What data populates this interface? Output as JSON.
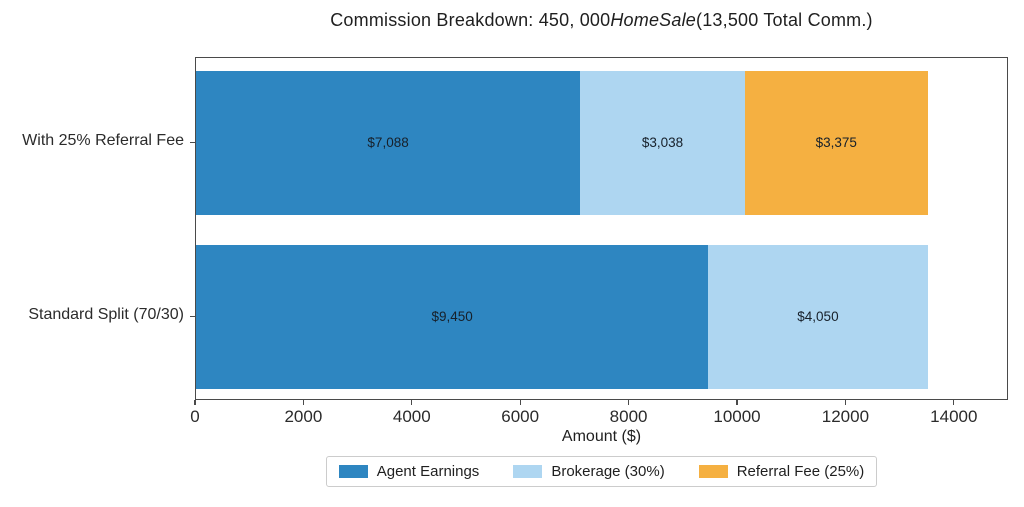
{
  "chart_data": {
    "type": "bar",
    "orientation": "horizontal",
    "stacked": true,
    "title_display": "Commission Breakdown: 450, 000HomeSale(13,500 Total Comm.)",
    "title_parts": {
      "prefix": "Commission Breakdown: 450, 000",
      "math_italic": "HomeSale",
      "suffix": "(13,500 Total Comm.)"
    },
    "categories": [
      "With 25% Referral Fee",
      "Standard Split (70/30)"
    ],
    "series": [
      {
        "name": "Agent Earnings",
        "color": "#2E86C1",
        "values": [
          7088,
          9450
        ]
      },
      {
        "name": "Brokerage (30%)",
        "color": "#AED6F1",
        "values": [
          3038,
          4050
        ]
      },
      {
        "name": "Referral Fee (25%)",
        "color": "#F5B041",
        "values": [
          3375,
          0
        ]
      }
    ],
    "segment_labels": [
      [
        "$7,088",
        "$3,038",
        "$3,375"
      ],
      [
        "$9,450",
        "$4,050"
      ]
    ],
    "totals": [
      13500,
      13500
    ],
    "xlabel": "Amount ($)",
    "x_ticks": [
      0,
      2000,
      4000,
      6000,
      8000,
      10000,
      12000,
      14000
    ],
    "x_tick_labels": [
      "0",
      "2000",
      "4000",
      "6000",
      "8000",
      "10000",
      "12000",
      "14000"
    ],
    "xlim": [
      0,
      15000
    ],
    "grid": false,
    "legend": {
      "position": "bottom",
      "entries": [
        "Agent Earnings",
        "Brokerage (30%)",
        "Referral Fee (25%)"
      ]
    },
    "colors": {
      "axis": "#4a4a4a",
      "text": "#1f1f1f",
      "background": "#ffffff"
    }
  }
}
